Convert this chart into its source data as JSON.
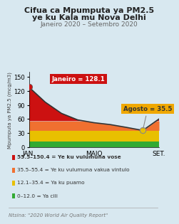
{
  "title_line1": "Cifua ca Mpumputa ya PM2.5",
  "title_line2": "ye ku Kala mu Nova Delhi",
  "subtitle": "Janeiro 2020 – Setembro 2020",
  "xlabel_ticks": [
    "JAN.",
    "MAIO",
    "SET."
  ],
  "ylabel": "Mpumputa ya PM2.5 (mcg/m3)",
  "ylim": [
    0,
    160
  ],
  "yticks": [
    0,
    30,
    60,
    90,
    120,
    150
  ],
  "x_values": [
    0,
    1,
    2,
    3,
    4,
    5,
    6,
    7,
    8
  ],
  "values": [
    128.1,
    96.0,
    72.0,
    58.0,
    52.0,
    48.0,
    42.0,
    35.5,
    60.0
  ],
  "janeiro_val": 128.1,
  "agosto_val": 35.5,
  "janeiro_idx": 0,
  "agosto_idx": 7,
  "bg_color": "#d8e8f0",
  "line_color": "#333333",
  "janeiro_box_color": "#cc1111",
  "agosto_box_color": "#f0a800",
  "janeiro_dot_color": "#cc1111",
  "agosto_dot_color": "#e8c000",
  "legend_items": [
    {
      "range": "55.5–150.4",
      "label": "= Ye ku vulumuna vose",
      "color": "#cc1111"
    },
    {
      "range": "35.5–55.4",
      "label": "= Ye ku vulumuna vakua vintulo",
      "color": "#f07030"
    },
    {
      "range": "12.1–35.4",
      "label": "= Ya ku puamo",
      "color": "#e8c000"
    },
    {
      "range": "0–12.0",
      "label": "= Ya cili",
      "color": "#33aa33"
    }
  ],
  "source_text": "Ntsina: \"2020 World Air Quality Report\""
}
